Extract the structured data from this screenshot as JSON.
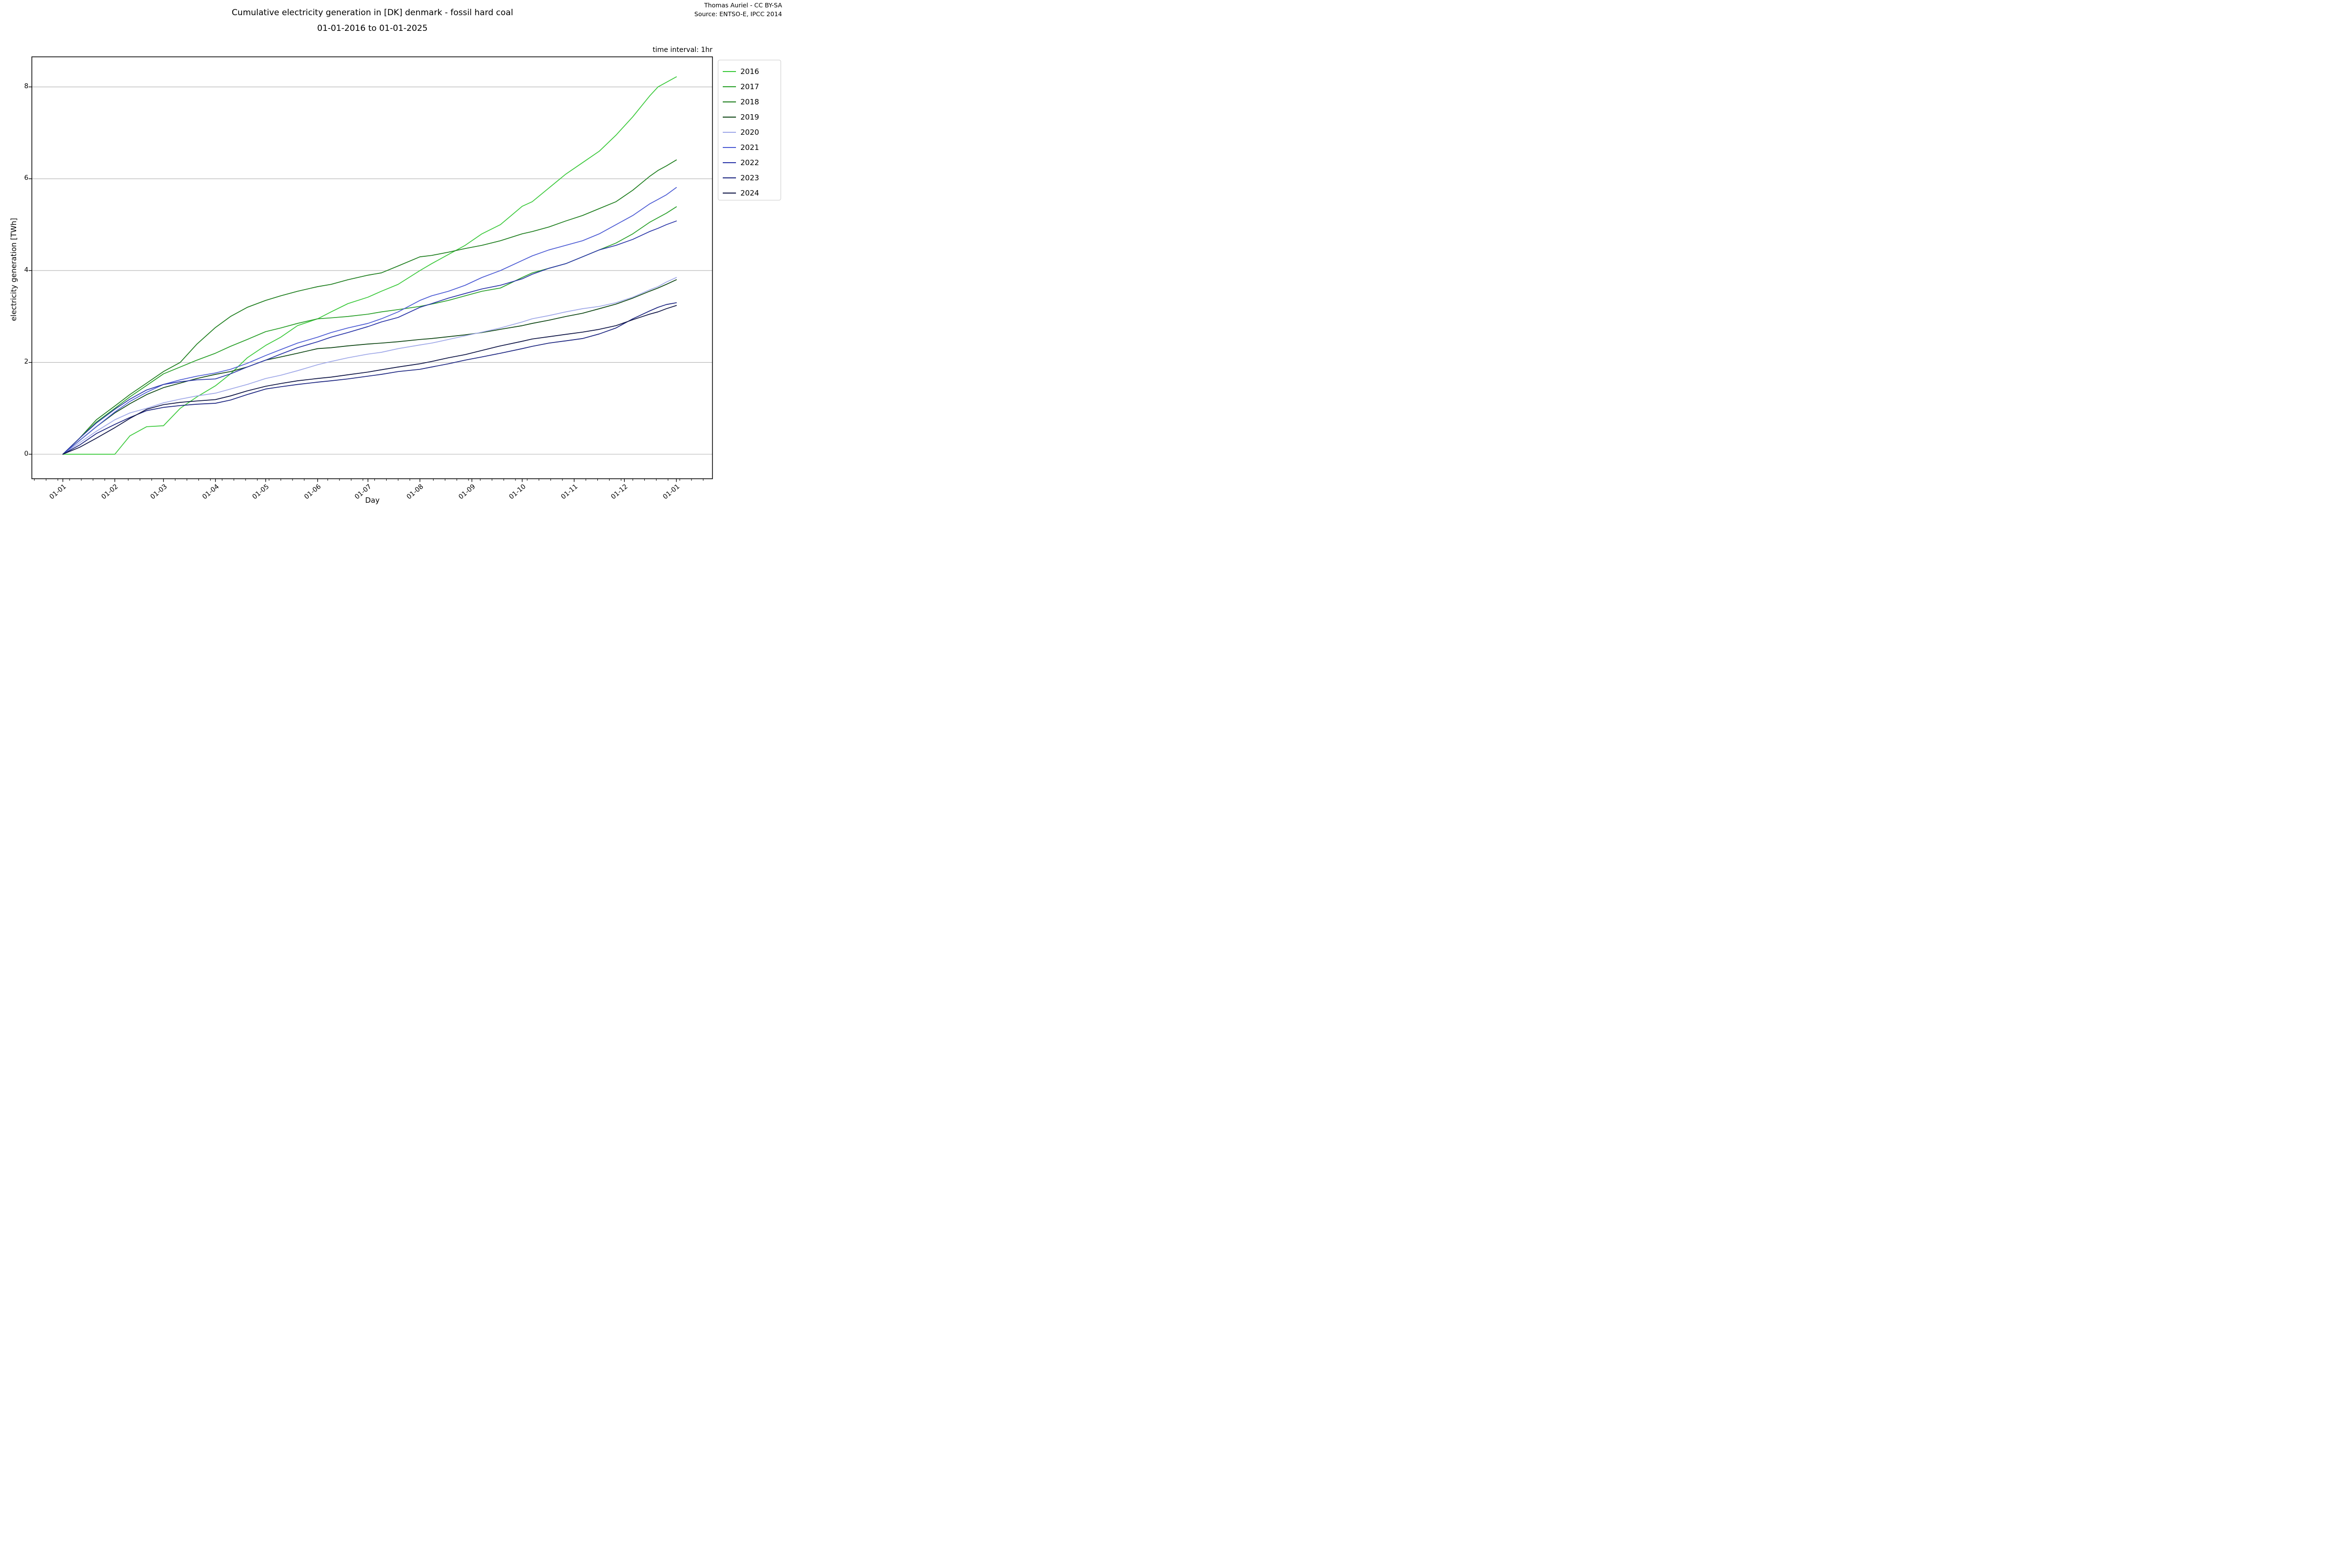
{
  "figure": {
    "attribution_line1": "Thomas Auriel - CC BY-SA",
    "attribution_line2": "Source: ENTSO-E, IPCC 2014",
    "note": "time interval: 1hr"
  },
  "chart_data": {
    "type": "line",
    "title": "Cumulative electricity generation in [DK] denmark - fossil hard coal",
    "subtitle": "01-01-2016 to 01-01-2025",
    "xlabel": "Day",
    "ylabel": "electricity generation [TWh]",
    "grid": "horizontal",
    "grid_color": "#b3b3b3",
    "legend_position": "upper right, outside axes",
    "x_axis": {
      "tick_labels": [
        "01-01",
        "01-02",
        "01-03",
        "01-04",
        "01-05",
        "01-06",
        "01-07",
        "01-08",
        "01-09",
        "01-10",
        "01-11",
        "01-12",
        "01-01"
      ],
      "tick_days": [
        0,
        31,
        60,
        91,
        121,
        152,
        182,
        213,
        244,
        274,
        305,
        335,
        366
      ],
      "minor_tick_interval_days": 7
    },
    "y_axis": {
      "ticks": [
        0,
        2,
        4,
        6,
        8
      ],
      "range": [
        -0.53,
        8.66
      ],
      "unit": "TWh"
    },
    "x_days": [
      0,
      10,
      20,
      31,
      40,
      50,
      60,
      70,
      80,
      91,
      100,
      110,
      121,
      130,
      140,
      152,
      160,
      170,
      182,
      190,
      200,
      213,
      220,
      230,
      240,
      250,
      261,
      274,
      280,
      290,
      300,
      310,
      320,
      330,
      340,
      350,
      355,
      360,
      366
    ],
    "series": [
      {
        "name": "2016",
        "color": "#3bc93b",
        "values": [
          0,
          0,
          0,
          0,
          0.4,
          0.6,
          0.62,
          1.0,
          1.25,
          1.49,
          1.75,
          2.1,
          2.37,
          2.55,
          2.8,
          2.95,
          3.1,
          3.28,
          3.42,
          3.55,
          3.7,
          4.0,
          4.15,
          4.35,
          4.55,
          4.8,
          5.0,
          5.4,
          5.5,
          5.8,
          6.1,
          6.35,
          6.6,
          6.95,
          7.35,
          7.8,
          8.0,
          8.1,
          8.22
        ]
      },
      {
        "name": "2017",
        "color": "#2aa02a",
        "values": [
          0,
          0.35,
          0.7,
          1.0,
          1.25,
          1.5,
          1.75,
          1.9,
          2.05,
          2.2,
          2.35,
          2.5,
          2.67,
          2.75,
          2.85,
          2.95,
          2.97,
          3.0,
          3.05,
          3.1,
          3.15,
          3.22,
          3.27,
          3.35,
          3.45,
          3.55,
          3.62,
          3.85,
          3.95,
          4.05,
          4.15,
          4.3,
          4.45,
          4.6,
          4.8,
          5.05,
          5.15,
          5.25,
          5.39
        ]
      },
      {
        "name": "2018",
        "color": "#1e7e1e",
        "values": [
          0,
          0.35,
          0.75,
          1.05,
          1.3,
          1.55,
          1.8,
          2.0,
          2.4,
          2.76,
          3.0,
          3.2,
          3.35,
          3.45,
          3.55,
          3.65,
          3.7,
          3.8,
          3.9,
          3.95,
          4.1,
          4.3,
          4.33,
          4.4,
          4.48,
          4.55,
          4.65,
          4.8,
          4.85,
          4.95,
          5.08,
          5.2,
          5.35,
          5.5,
          5.75,
          6.05,
          6.18,
          6.28,
          6.41
        ]
      },
      {
        "name": "2019",
        "color": "#0f4715",
        "values": [
          0,
          0.3,
          0.6,
          0.9,
          1.1,
          1.3,
          1.45,
          1.55,
          1.65,
          1.74,
          1.8,
          1.9,
          2.05,
          2.12,
          2.2,
          2.3,
          2.32,
          2.36,
          2.4,
          2.42,
          2.45,
          2.5,
          2.52,
          2.56,
          2.6,
          2.65,
          2.72,
          2.8,
          2.85,
          2.92,
          3.0,
          3.07,
          3.17,
          3.27,
          3.4,
          3.55,
          3.62,
          3.7,
          3.8
        ]
      },
      {
        "name": "2020",
        "color": "#9fa8e8",
        "values": [
          0,
          0.25,
          0.5,
          0.75,
          0.9,
          1.0,
          1.12,
          1.2,
          1.27,
          1.33,
          1.42,
          1.52,
          1.65,
          1.72,
          1.82,
          1.95,
          2.02,
          2.1,
          2.18,
          2.22,
          2.3,
          2.38,
          2.42,
          2.5,
          2.58,
          2.66,
          2.75,
          2.88,
          2.95,
          3.02,
          3.1,
          3.17,
          3.22,
          3.3,
          3.42,
          3.58,
          3.65,
          3.75,
          3.85
        ]
      },
      {
        "name": "2021",
        "color": "#4c5bd4",
        "values": [
          0,
          0.3,
          0.6,
          0.92,
          1.15,
          1.35,
          1.52,
          1.62,
          1.7,
          1.77,
          1.85,
          1.98,
          2.15,
          2.28,
          2.42,
          2.55,
          2.65,
          2.75,
          2.85,
          2.95,
          3.1,
          3.35,
          3.45,
          3.55,
          3.68,
          3.85,
          4.0,
          4.22,
          4.32,
          4.45,
          4.55,
          4.65,
          4.8,
          5.0,
          5.2,
          5.45,
          5.55,
          5.65,
          5.81
        ]
      },
      {
        "name": "2022",
        "color": "#2b36a8",
        "values": [
          0,
          0.35,
          0.68,
          0.98,
          1.2,
          1.4,
          1.52,
          1.58,
          1.62,
          1.64,
          1.75,
          1.9,
          2.05,
          2.18,
          2.32,
          2.45,
          2.55,
          2.65,
          2.78,
          2.88,
          2.98,
          3.2,
          3.28,
          3.4,
          3.5,
          3.6,
          3.68,
          3.82,
          3.92,
          4.05,
          4.15,
          4.3,
          4.45,
          4.55,
          4.68,
          4.85,
          4.92,
          5.0,
          5.08
        ]
      },
      {
        "name": "2023",
        "color": "#1c2580",
        "values": [
          0,
          0.2,
          0.45,
          0.65,
          0.8,
          0.95,
          1.02,
          1.06,
          1.09,
          1.11,
          1.18,
          1.3,
          1.42,
          1.47,
          1.52,
          1.57,
          1.6,
          1.64,
          1.7,
          1.74,
          1.8,
          1.85,
          1.9,
          1.97,
          2.05,
          2.12,
          2.2,
          2.3,
          2.35,
          2.42,
          2.47,
          2.52,
          2.62,
          2.75,
          2.95,
          3.12,
          3.2,
          3.26,
          3.3
        ]
      },
      {
        "name": "2024",
        "color": "#0e1445",
        "values": [
          0,
          0.15,
          0.35,
          0.58,
          0.78,
          0.98,
          1.08,
          1.13,
          1.16,
          1.19,
          1.27,
          1.38,
          1.48,
          1.54,
          1.6,
          1.65,
          1.68,
          1.73,
          1.79,
          1.84,
          1.9,
          1.97,
          2.02,
          2.1,
          2.17,
          2.26,
          2.36,
          2.46,
          2.51,
          2.56,
          2.61,
          2.66,
          2.72,
          2.8,
          2.93,
          3.05,
          3.1,
          3.17,
          3.24
        ]
      }
    ]
  }
}
